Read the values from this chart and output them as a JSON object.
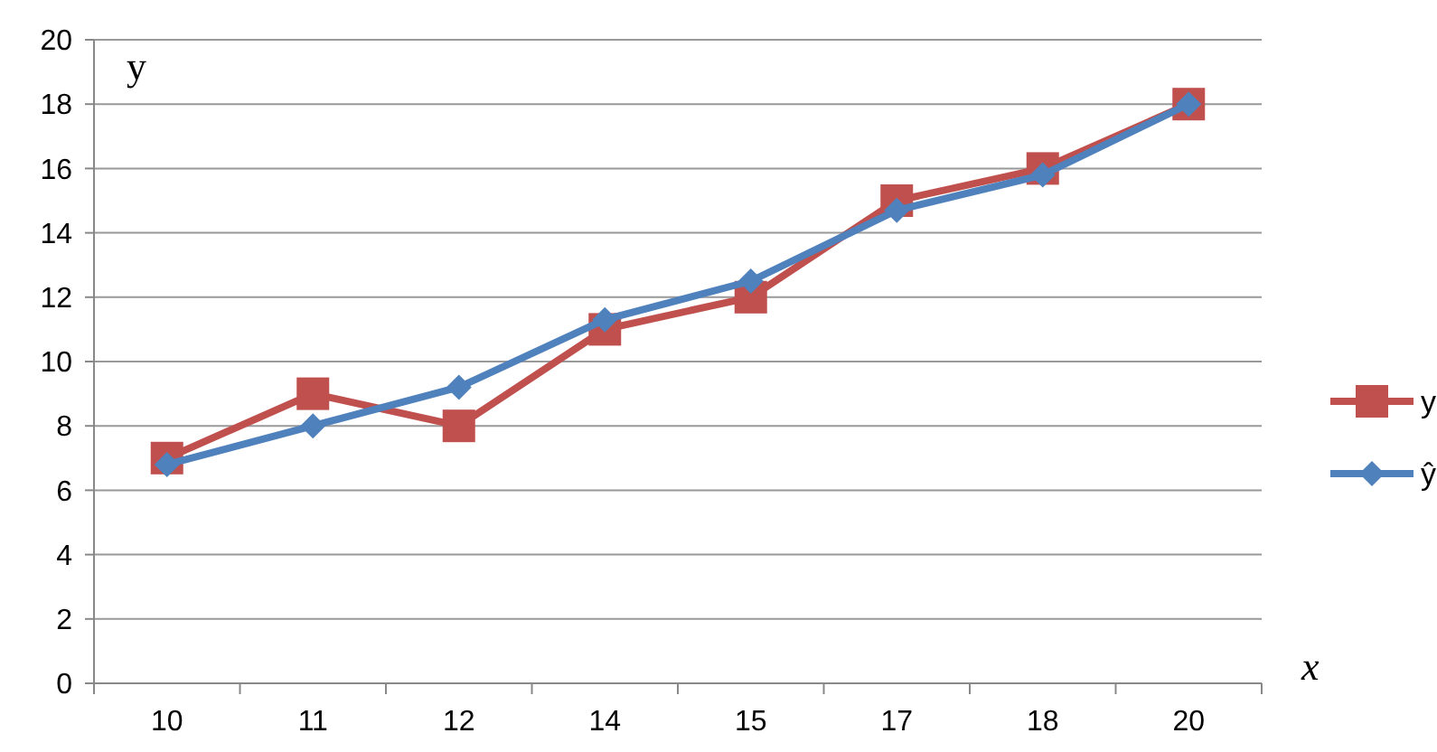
{
  "chart_data": {
    "type": "line",
    "categories": [
      "10",
      "11",
      "12",
      "14",
      "15",
      "17",
      "18",
      "20"
    ],
    "xlabel": "x",
    "ylabel": "y",
    "series": [
      {
        "name": "y",
        "color": "#c0504d",
        "marker": "square",
        "values": [
          7,
          9,
          8,
          11,
          12,
          15,
          16,
          18
        ]
      },
      {
        "name": "ŷ",
        "color": "#4f81bd",
        "marker": "diamond",
        "values": [
          6.8,
          8.0,
          9.2,
          11.3,
          12.5,
          14.7,
          15.8,
          18.0
        ]
      }
    ],
    "ylim": [
      0,
      20
    ],
    "yticks": [
      0,
      2,
      4,
      6,
      8,
      10,
      12,
      14,
      16,
      18,
      20
    ],
    "grid": "y",
    "legend": "right"
  }
}
